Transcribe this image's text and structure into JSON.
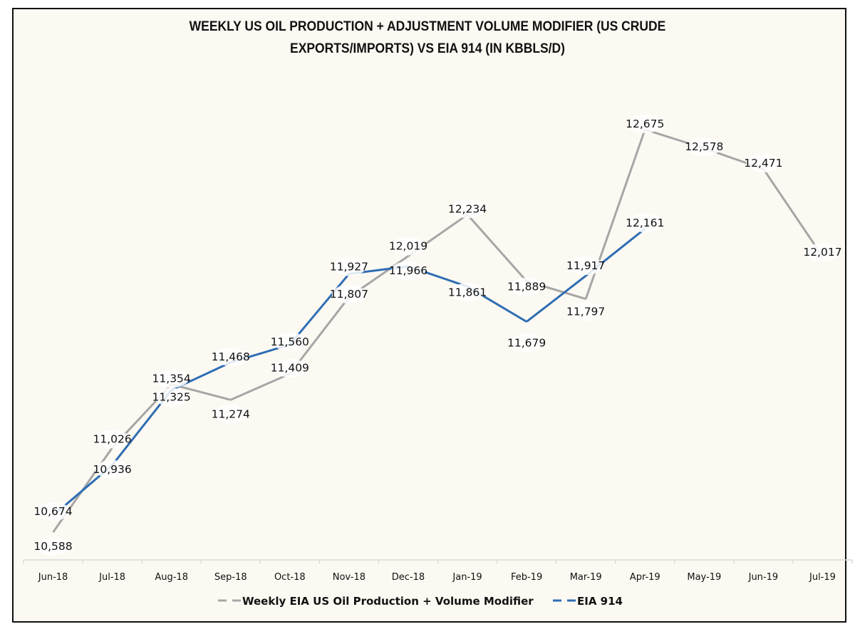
{
  "chart_data": {
    "type": "line",
    "title": "WEEKLY US OIL PRODUCTION + ADJUSTMENT VOLUME MODIFIER (US CRUDE EXPORTS/IMPORTS) VS EIA 914 (IN KBBLS/D)",
    "title_lines": [
      "WEEKLY US OIL PRODUCTION + ADJUSTMENT VOLUME MODIFIER (US CRUDE",
      "EXPORTS/IMPORTS) VS EIA 914 (IN KBBLS/D)"
    ],
    "xlabel": "",
    "ylabel": "",
    "categories": [
      "Jun-18",
      "Jul-18",
      "Aug-18",
      "Sep-18",
      "Oct-18",
      "Nov-18",
      "Dec-18",
      "Jan-19",
      "Feb-19",
      "Mar-19",
      "Apr-19",
      "May-19",
      "Jun-19",
      "Jul-19"
    ],
    "ylim": [
      10400,
      12800
    ],
    "grid": false,
    "legend_position": "bottom",
    "series": [
      {
        "name": "Weekly EIA US Oil Production + Volume Modifier",
        "color": "#a6a6a6",
        "values": [
          10588,
          11026,
          11354,
          11274,
          11409,
          11807,
          12019,
          12234,
          11889,
          11797,
          12675,
          12578,
          12471,
          12017
        ],
        "labels": [
          "10,588",
          "11,026",
          "11,354",
          "11,274",
          "11,409",
          "11,807",
          "12,019",
          "12,234",
          "11,889",
          "11,797",
          "12,675",
          "12,578",
          "12,471",
          "12,017"
        ]
      },
      {
        "name": "EIA 914",
        "color": "#2e6db4",
        "values": [
          10674,
          10936,
          11325,
          11468,
          11560,
          11927,
          11966,
          11861,
          11679,
          11917,
          12161,
          null,
          null,
          null
        ],
        "labels": [
          "10,674",
          "10,936",
          "11,325",
          "11,468",
          "11,560",
          "11,927",
          "11,966",
          "11,861",
          "11,679",
          "11,917",
          "12,161",
          null,
          null,
          null
        ]
      }
    ]
  }
}
